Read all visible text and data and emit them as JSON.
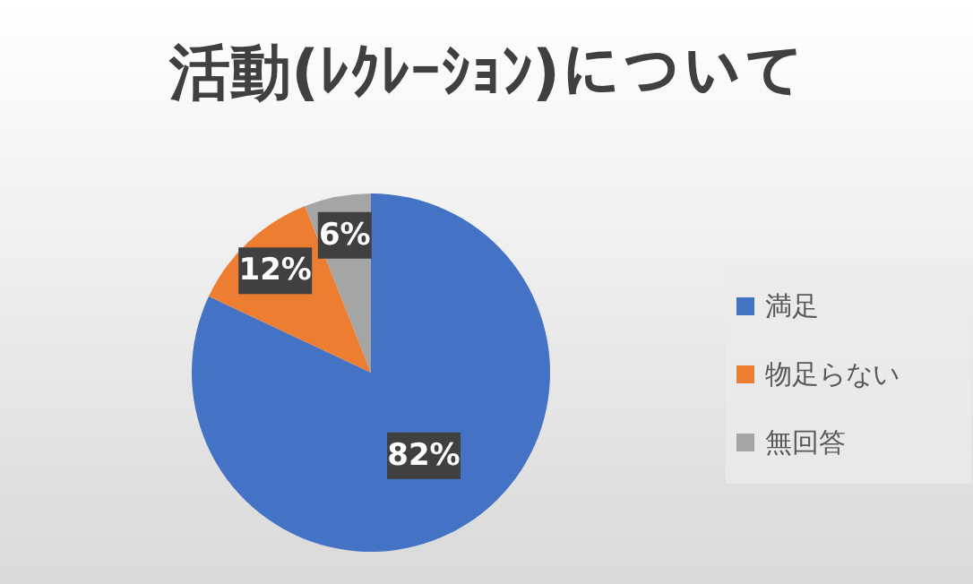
{
  "chart_data": {
    "type": "pie",
    "title": "活動(ﾚｸﾚｰｼｮﾝ)について",
    "categories": [
      "満足",
      "物足らない",
      "無回答"
    ],
    "values": [
      82,
      12,
      6
    ],
    "colors": [
      "#4472c4",
      "#ed7d31",
      "#a5a5a5"
    ],
    "value_labels": [
      "82%",
      "12%",
      "6%"
    ],
    "legend": "right"
  }
}
